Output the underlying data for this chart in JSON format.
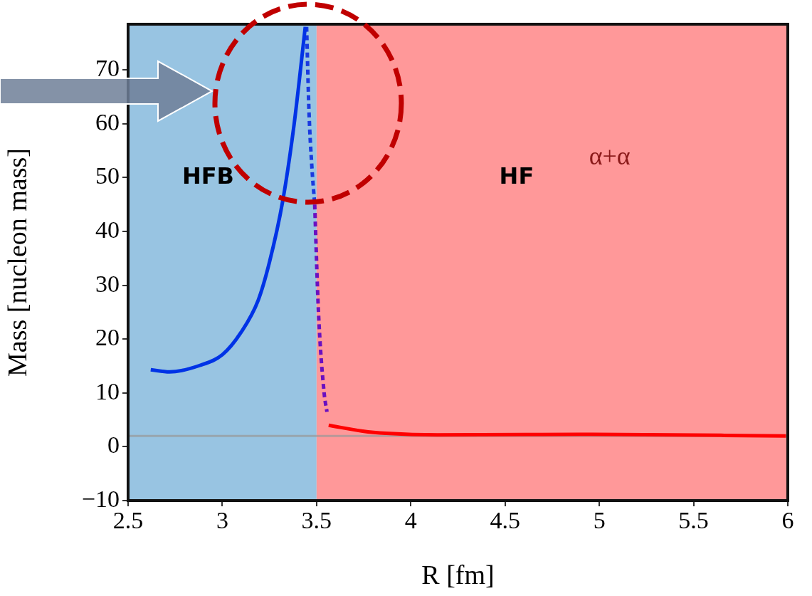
{
  "chart_data": {
    "type": "line",
    "xlabel": "R [fm]",
    "ylabel": "Mass [nucleon mass]",
    "xlim": [
      2.5,
      6
    ],
    "ylim": [
      -10,
      78.5
    ],
    "xticks": [
      2.5,
      3,
      3.5,
      4,
      4.5,
      5,
      5.5,
      6
    ],
    "yticks": [
      -10,
      0,
      10,
      20,
      30,
      40,
      50,
      60,
      70
    ],
    "grid": false,
    "legend": false,
    "marker": "none",
    "series": [
      {
        "color": "#0033e6",
        "line_style": "solid",
        "x": [
          2.62,
          2.72,
          2.88,
          3.0,
          3.1,
          3.19,
          3.25,
          3.32,
          3.38,
          3.44
        ],
        "values": [
          14.3,
          13.9,
          15.1,
          17.1,
          21.3,
          27.2,
          34.3,
          45.6,
          59.7,
          78
        ]
      },
      {
        "color": "#1a3ae0",
        "line_style": "dashed",
        "x": [
          3.447,
          3.46,
          3.475,
          3.49
        ],
        "values": [
          78,
          62,
          52,
          45
        ]
      },
      {
        "color": "#6a10c0",
        "line_style": "dashed",
        "x": [
          3.49,
          3.51,
          3.54,
          3.555
        ],
        "values": [
          45,
          25,
          10,
          6.5
        ]
      },
      {
        "color": "#ff0000",
        "line_style": "solid",
        "x": [
          3.564,
          3.745,
          3.87,
          4.14,
          4.96,
          5.99
        ],
        "values": [
          4.0,
          2.9,
          2.5,
          2.2,
          2.3,
          2.0
        ]
      }
    ],
    "bands": [
      {
        "axis": "x",
        "from": 2.5,
        "to": 3.5,
        "label": "HFB",
        "color": "#98c4e2"
      },
      {
        "axis": "x",
        "from": 3.5,
        "to": 6,
        "label": "HF",
        "color": "#ff9899"
      }
    ],
    "ref_lines": [
      {
        "axis": "y",
        "value": 2,
        "color": "#999999",
        "line_style": "solid"
      }
    ],
    "annotations": [
      "α+α"
    ]
  }
}
